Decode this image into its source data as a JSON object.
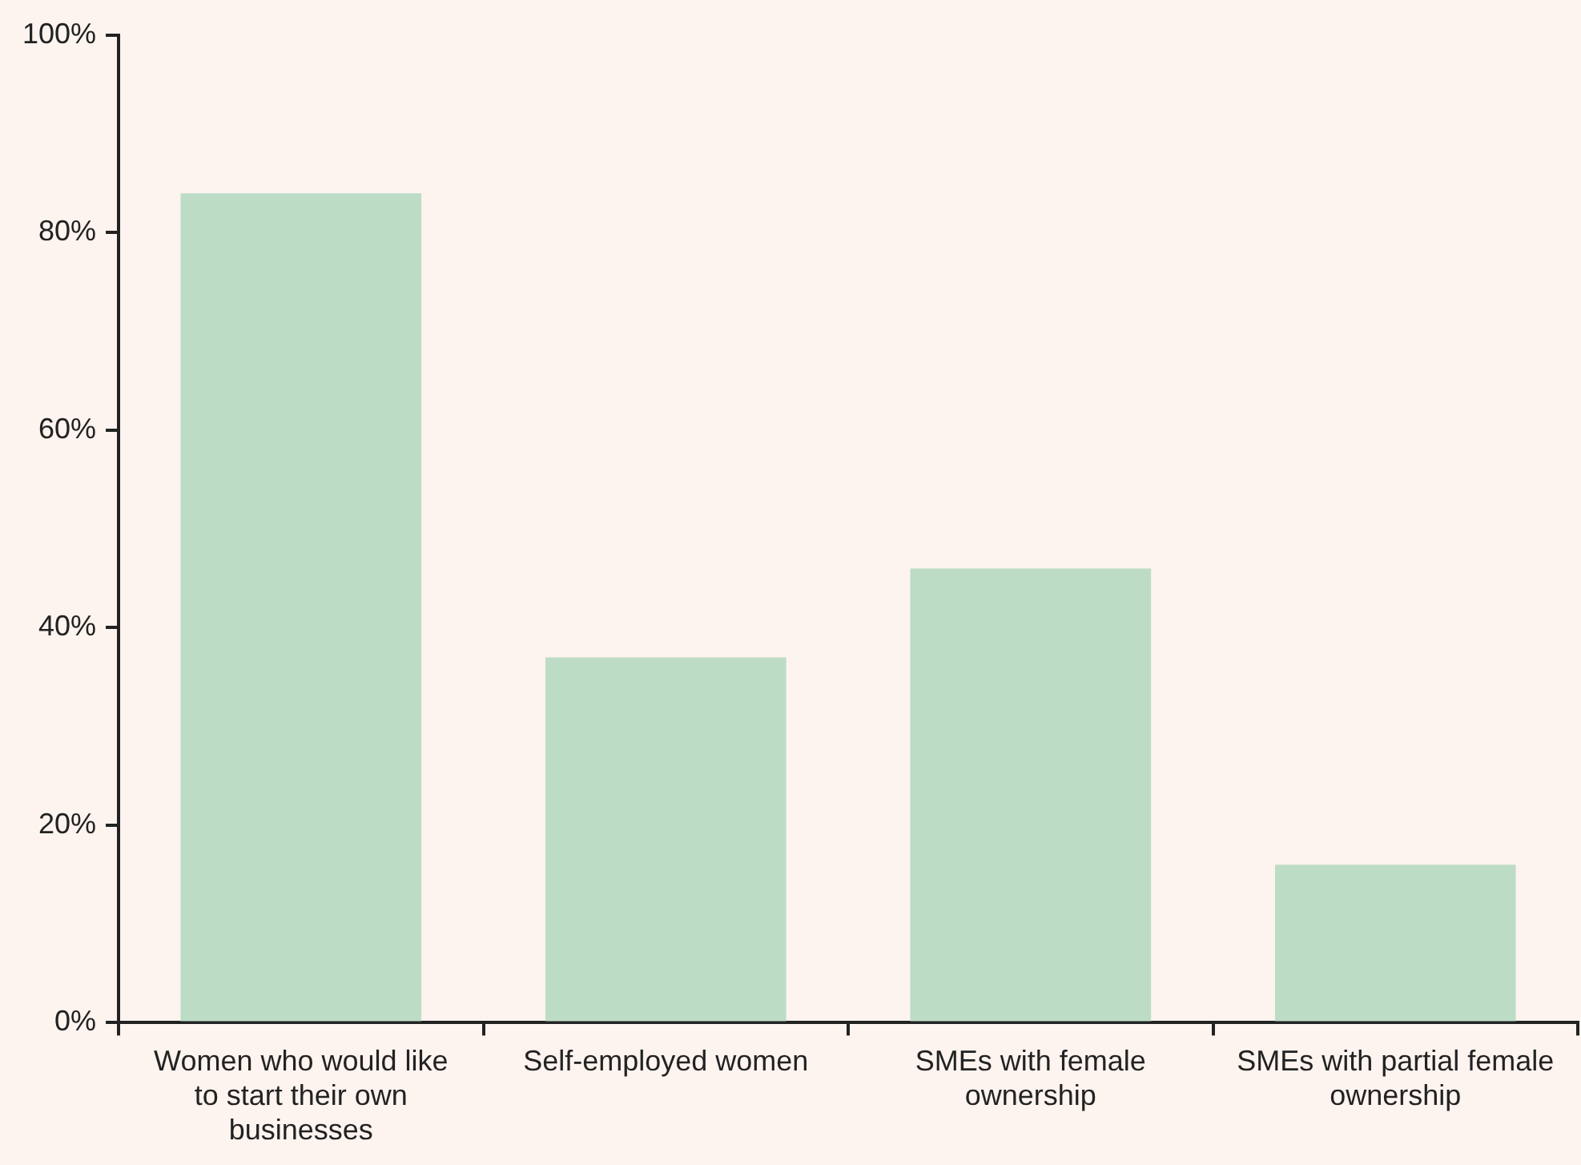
{
  "chart_data": {
    "type": "bar",
    "categories": [
      "Women who would like to start their own businesses",
      "Self-employed women",
      "SMEs with female ownership",
      "SMEs with partial female ownership"
    ],
    "values": [
      84,
      37,
      46,
      16
    ],
    "color": "#bddcc6",
    "ylim": [
      0,
      100
    ],
    "yticks": [
      {
        "value": 0,
        "label": "0%"
      },
      {
        "value": 20,
        "label": "20%"
      },
      {
        "value": 40,
        "label": "40%"
      },
      {
        "value": 60,
        "label": "60%"
      },
      {
        "value": 80,
        "label": "80%"
      },
      {
        "value": 100,
        "label": "100%"
      }
    ]
  }
}
